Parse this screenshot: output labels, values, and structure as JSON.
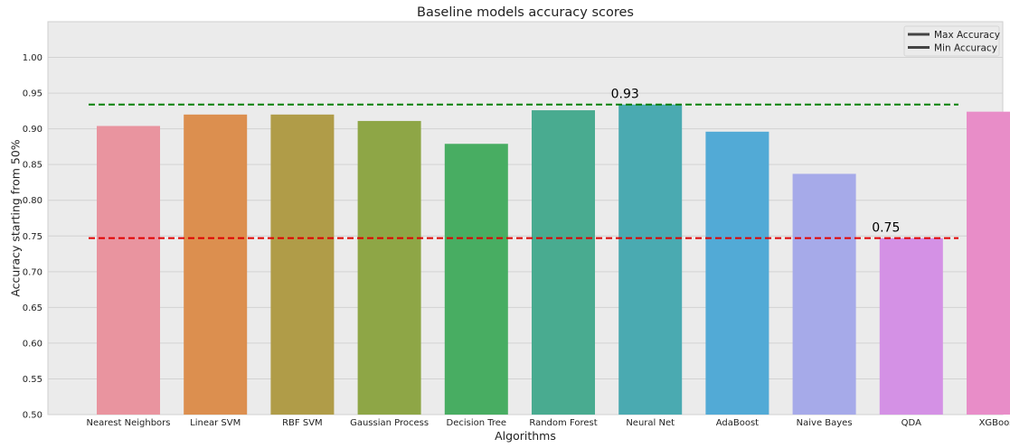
{
  "chart_data": {
    "type": "bar",
    "title": "Baseline models accuracy scores",
    "xlabel": "Algorithms",
    "ylabel": "Accuracy starting from 50%",
    "ylim": [
      0.5,
      1.05
    ],
    "yticks": [
      "0.50",
      "0.55",
      "0.60",
      "0.65",
      "0.70",
      "0.75",
      "0.80",
      "0.85",
      "0.90",
      "0.95",
      "1.00"
    ],
    "grid": true,
    "categories": [
      "Nearest Neighbors",
      "Linear SVM",
      "RBF SVM",
      "Gaussian Process",
      "Decision Tree",
      "Random Forest",
      "Neural Net",
      "AdaBoost",
      "Naive Bayes",
      "QDA",
      "XGBoost"
    ],
    "values": [
      0.904,
      0.92,
      0.92,
      0.911,
      0.879,
      0.926,
      0.934,
      0.896,
      0.837,
      0.747,
      0.924
    ],
    "colors": [
      "#e9949f",
      "#dc8f4f",
      "#b09c48",
      "#8ea646",
      "#48ad62",
      "#49ab90",
      "#4aaab1",
      "#52aad6",
      "#a6aae9",
      "#d491e5",
      "#e88dc8"
    ],
    "reference_lines": [
      {
        "name": "Max Accuracy",
        "value": 0.934,
        "color": "#008000",
        "label": "0.93",
        "label_category_index": 6
      },
      {
        "name": "Min Accuracy",
        "value": 0.747,
        "color": "#e00000",
        "label": "0.75",
        "label_category_index": 9
      }
    ],
    "legend": {
      "placement": "top-right",
      "entries": [
        "Max Accuracy",
        "Min Accuracy"
      ],
      "line_color": "#444444"
    }
  }
}
